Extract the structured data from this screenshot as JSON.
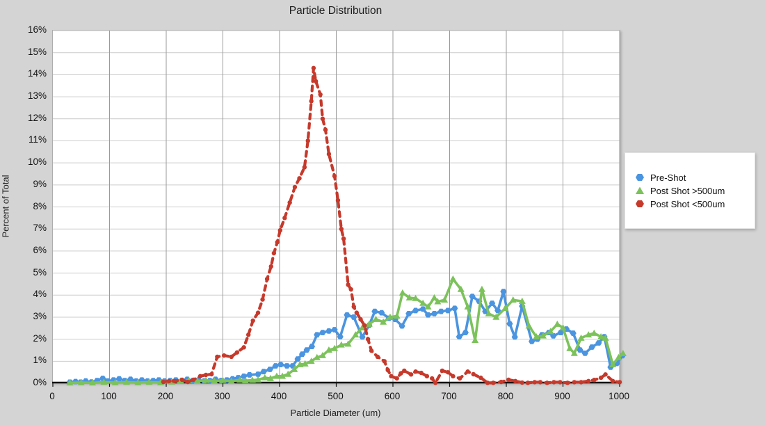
{
  "title": "Particle Distribution",
  "x_axis": {
    "label": "Particle Diameter (um)",
    "ticks": [
      "0",
      "100",
      "200",
      "300",
      "400",
      "500",
      "600",
      "700",
      "800",
      "900",
      "1000"
    ],
    "min": 0,
    "max": 1000
  },
  "y_axis": {
    "label": "Percent of Total",
    "ticks": [
      "0%",
      "1%",
      "2%",
      "3%",
      "4%",
      "5%",
      "6%",
      "7%",
      "8%",
      "9%",
      "10%",
      "11%",
      "12%",
      "13%",
      "14%",
      "15%",
      "16%"
    ],
    "min": 0,
    "max": 16
  },
  "legend": {
    "items": [
      {
        "label": "Pre-Shot",
        "color": "#4a94e0",
        "marker": "hexagon"
      },
      {
        "label": "Post Shot >500um",
        "color": "#7cc25b",
        "marker": "triangle"
      },
      {
        "label": "Post Shot <500um",
        "color": "#c6392b",
        "marker": "hexagon"
      }
    ]
  },
  "colors": {
    "background": "#d4d4d4",
    "plot_background": "#ffffff",
    "grid_vertical": "#9a9a9a",
    "grid_horizontal": "#cccccc",
    "axis_line": "#111111",
    "pre_shot": "#4a94e0",
    "post_shot_gt500": "#7cc25b",
    "post_shot_lt500": "#c6392b"
  },
  "chart_data": {
    "type": "line",
    "title": "Particle Distribution",
    "xlabel": "Particle Diameter (um)",
    "ylabel": "Percent of Total",
    "xlim": [
      0,
      1000
    ],
    "ylim": [
      0,
      16
    ],
    "x_tick_step": 100,
    "y_tick_step": 1,
    "grid": true,
    "legend_position": "right",
    "series": [
      {
        "name": "Pre-Shot",
        "color": "#4a94e0",
        "style": "solid",
        "marker": "hexagon",
        "points": [
          [
            30,
            0.05
          ],
          [
            40,
            0.08
          ],
          [
            49,
            0.05
          ],
          [
            58,
            0.1
          ],
          [
            68,
            0.06
          ],
          [
            78,
            0.12
          ],
          [
            88,
            0.22
          ],
          [
            97,
            0.1
          ],
          [
            107,
            0.15
          ],
          [
            117,
            0.2
          ],
          [
            127,
            0.12
          ],
          [
            137,
            0.18
          ],
          [
            147,
            0.1
          ],
          [
            157,
            0.15
          ],
          [
            167,
            0.1
          ],
          [
            177,
            0.12
          ],
          [
            187,
            0.15
          ],
          [
            197,
            0.1
          ],
          [
            207,
            0.12
          ],
          [
            217,
            0.15
          ],
          [
            227,
            0.1
          ],
          [
            237,
            0.18
          ],
          [
            247,
            0.12
          ],
          [
            257,
            0.15
          ],
          [
            267,
            0.1
          ],
          [
            277,
            0.12
          ],
          [
            287,
            0.18
          ],
          [
            297,
            0.12
          ],
          [
            307,
            0.15
          ],
          [
            317,
            0.2
          ],
          [
            327,
            0.25
          ],
          [
            337,
            0.32
          ],
          [
            347,
            0.38
          ],
          [
            362,
            0.41
          ],
          [
            372,
            0.53
          ],
          [
            383,
            0.63
          ],
          [
            393,
            0.79
          ],
          [
            402,
            0.85
          ],
          [
            413,
            0.79
          ],
          [
            423,
            0.79
          ],
          [
            432,
            1.1
          ],
          [
            440,
            1.32
          ],
          [
            448,
            1.51
          ],
          [
            457,
            1.67
          ],
          [
            466,
            2.2
          ],
          [
            476,
            2.3
          ],
          [
            487,
            2.37
          ],
          [
            497,
            2.43
          ],
          [
            507,
            2.11
          ],
          [
            519,
            3.1
          ],
          [
            531,
            3.0
          ],
          [
            546,
            2.1
          ],
          [
            558,
            2.63
          ],
          [
            568,
            3.26
          ],
          [
            580,
            3.2
          ],
          [
            593,
            2.95
          ],
          [
            604,
            2.9
          ],
          [
            616,
            2.6
          ],
          [
            628,
            3.16
          ],
          [
            640,
            3.3
          ],
          [
            653,
            3.37
          ],
          [
            662,
            3.1
          ],
          [
            673,
            3.16
          ],
          [
            685,
            3.26
          ],
          [
            697,
            3.3
          ],
          [
            709,
            3.4
          ],
          [
            717,
            2.11
          ],
          [
            728,
            2.3
          ],
          [
            740,
            3.94
          ],
          [
            752,
            3.72
          ],
          [
            763,
            3.26
          ],
          [
            775,
            3.63
          ],
          [
            785,
            3.3
          ],
          [
            795,
            4.16
          ],
          [
            806,
            2.7
          ],
          [
            815,
            2.1
          ],
          [
            828,
            3.5
          ],
          [
            845,
            1.9
          ],
          [
            855,
            2.0
          ],
          [
            863,
            2.2
          ],
          [
            875,
            2.3
          ],
          [
            883,
            2.15
          ],
          [
            896,
            2.3
          ],
          [
            906,
            2.46
          ],
          [
            918,
            2.27
          ],
          [
            930,
            1.51
          ],
          [
            939,
            1.36
          ],
          [
            951,
            1.64
          ],
          [
            963,
            1.83
          ],
          [
            973,
            2.11
          ],
          [
            984,
            0.73
          ],
          [
            995,
            0.9
          ],
          [
            1005,
            1.25
          ]
        ]
      },
      {
        "name": "Post Shot >500um",
        "color": "#7cc25b",
        "style": "solid",
        "marker": "triangle",
        "points": [
          [
            30,
            0.02
          ],
          [
            50,
            0.03
          ],
          [
            70,
            0.02
          ],
          [
            90,
            0.05
          ],
          [
            110,
            0.03
          ],
          [
            130,
            0.05
          ],
          [
            150,
            0.03
          ],
          [
            170,
            0.05
          ],
          [
            190,
            0.03
          ],
          [
            210,
            0.06
          ],
          [
            225,
            0.1
          ],
          [
            240,
            0.13
          ],
          [
            255,
            0.1
          ],
          [
            270,
            0.13
          ],
          [
            285,
            0.1
          ],
          [
            300,
            0.13
          ],
          [
            315,
            0.1
          ],
          [
            330,
            0.15
          ],
          [
            340,
            0.12
          ],
          [
            352,
            0.14
          ],
          [
            362,
            0.16
          ],
          [
            374,
            0.25
          ],
          [
            384,
            0.22
          ],
          [
            395,
            0.32
          ],
          [
            405,
            0.32
          ],
          [
            415,
            0.41
          ],
          [
            426,
            0.63
          ],
          [
            436,
            0.85
          ],
          [
            445,
            0.88
          ],
          [
            456,
            1.0
          ],
          [
            466,
            1.17
          ],
          [
            476,
            1.26
          ],
          [
            487,
            1.51
          ],
          [
            497,
            1.58
          ],
          [
            509,
            1.74
          ],
          [
            521,
            1.78
          ],
          [
            534,
            2.2
          ],
          [
            546,
            2.52
          ],
          [
            558,
            2.68
          ],
          [
            570,
            2.9
          ],
          [
            583,
            2.78
          ],
          [
            595,
            3.0
          ],
          [
            607,
            3.05
          ],
          [
            617,
            4.1
          ],
          [
            629,
            3.88
          ],
          [
            640,
            3.85
          ],
          [
            653,
            3.63
          ],
          [
            662,
            3.47
          ],
          [
            673,
            3.88
          ],
          [
            679,
            3.7
          ],
          [
            691,
            3.78
          ],
          [
            706,
            4.73
          ],
          [
            720,
            4.26
          ],
          [
            732,
            3.47
          ],
          [
            745,
            1.95
          ],
          [
            757,
            4.26
          ],
          [
            769,
            3.16
          ],
          [
            782,
            3.0
          ],
          [
            798,
            3.4
          ],
          [
            812,
            3.78
          ],
          [
            828,
            3.72
          ],
          [
            840,
            2.6
          ],
          [
            853,
            2.11
          ],
          [
            865,
            2.15
          ],
          [
            878,
            2.35
          ],
          [
            890,
            2.68
          ],
          [
            900,
            2.52
          ],
          [
            912,
            1.58
          ],
          [
            920,
            1.36
          ],
          [
            932,
            2.05
          ],
          [
            945,
            2.2
          ],
          [
            955,
            2.27
          ],
          [
            967,
            2.11
          ],
          [
            975,
            2.05
          ],
          [
            988,
            0.85
          ],
          [
            998,
            1.17
          ],
          [
            1006,
            1.35
          ]
        ]
      },
      {
        "name": "Post Shot <500um",
        "color": "#c6392b",
        "style": "dashed",
        "marker": "circle",
        "points": [
          [
            195,
            0.06
          ],
          [
            205,
            0.1
          ],
          [
            215,
            0.1
          ],
          [
            228,
            0.16
          ],
          [
            238,
            0.06
          ],
          [
            248,
            0.16
          ],
          [
            260,
            0.32
          ],
          [
            270,
            0.38
          ],
          [
            280,
            0.41
          ],
          [
            290,
            1.2
          ],
          [
            302,
            1.26
          ],
          [
            315,
            1.2
          ],
          [
            325,
            1.4
          ],
          [
            337,
            1.63
          ],
          [
            345,
            2.2
          ],
          [
            353,
            2.84
          ],
          [
            362,
            3.2
          ],
          [
            370,
            3.8
          ],
          [
            378,
            4.73
          ],
          [
            385,
            5.3
          ],
          [
            390,
            5.9
          ],
          [
            396,
            6.4
          ],
          [
            401,
            6.94
          ],
          [
            409,
            7.5
          ],
          [
            418,
            8.2
          ],
          [
            427,
            8.9
          ],
          [
            435,
            9.3
          ],
          [
            444,
            9.8
          ],
          [
            450,
            11.0
          ],
          [
            456,
            12.8
          ],
          [
            460,
            14.3
          ],
          [
            464,
            13.7
          ],
          [
            472,
            13.1
          ],
          [
            476,
            12.0
          ],
          [
            481,
            11.5
          ],
          [
            487,
            10.4
          ],
          [
            497,
            9.4
          ],
          [
            503,
            8.3
          ],
          [
            509,
            7.0
          ],
          [
            513,
            6.56
          ],
          [
            521,
            4.47
          ],
          [
            526,
            4.26
          ],
          [
            531,
            3.47
          ],
          [
            536,
            3.2
          ],
          [
            543,
            2.9
          ],
          [
            550,
            2.62
          ],
          [
            556,
            2.0
          ],
          [
            562,
            1.48
          ],
          [
            573,
            1.2
          ],
          [
            585,
            1.0
          ],
          [
            591,
            0.6
          ],
          [
            597,
            0.32
          ],
          [
            607,
            0.22
          ],
          [
            614,
            0.45
          ],
          [
            620,
            0.57
          ],
          [
            632,
            0.4
          ],
          [
            640,
            0.53
          ],
          [
            650,
            0.47
          ],
          [
            660,
            0.32
          ],
          [
            669,
            0.22
          ],
          [
            675,
            0.02
          ],
          [
            687,
            0.57
          ],
          [
            697,
            0.5
          ],
          [
            706,
            0.32
          ],
          [
            718,
            0.22
          ],
          [
            732,
            0.53
          ],
          [
            742,
            0.41
          ],
          [
            755,
            0.25
          ],
          [
            767,
            0.02
          ],
          [
            777,
            0.02
          ],
          [
            791,
            0.06
          ],
          [
            804,
            0.16
          ],
          [
            816,
            0.1
          ],
          [
            828,
            0.03
          ],
          [
            838,
            0.02
          ],
          [
            850,
            0.05
          ],
          [
            860,
            0.05
          ],
          [
            872,
            0.02
          ],
          [
            884,
            0.05
          ],
          [
            895,
            0.05
          ],
          [
            908,
            0.02
          ],
          [
            920,
            0.05
          ],
          [
            932,
            0.05
          ],
          [
            945,
            0.1
          ],
          [
            955,
            0.15
          ],
          [
            967,
            0.25
          ],
          [
            975,
            0.4
          ],
          [
            988,
            0.1
          ],
          [
            1000,
            0.05
          ]
        ]
      }
    ]
  }
}
